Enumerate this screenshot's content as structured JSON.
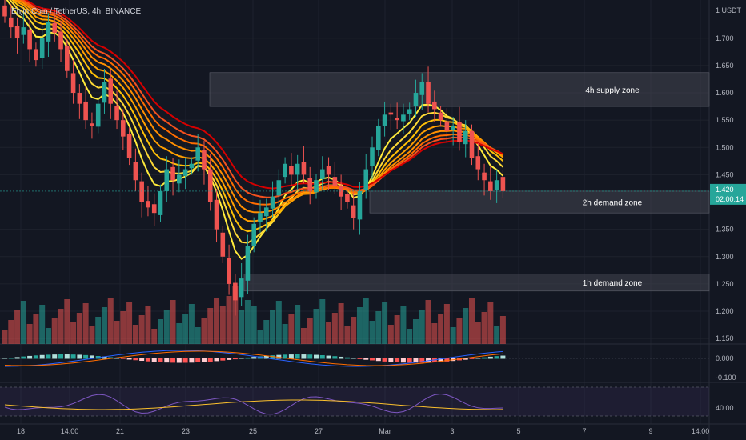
{
  "header": {
    "symbol_title": "Enjin Coin / TetherUS, 4h, BINANCE"
  },
  "price_axis": {
    "unit_label": "1 USDT",
    "ticks": [
      "1.700",
      "1.650",
      "1.600",
      "1.550",
      "1.500",
      "1.450",
      "1.350",
      "1.300",
      "1.250",
      "1.200",
      "1.150"
    ],
    "current_price": "1.420",
    "countdown": "02:00:14"
  },
  "time_axis": {
    "ticks": [
      "18",
      "14:00",
      "21",
      "23",
      "25",
      "27",
      "Mar",
      "3",
      "5",
      "7",
      "9",
      "14:00"
    ]
  },
  "macd_panel": {
    "zero_label": "0.000",
    "neg_label": "-0.100"
  },
  "rsi_panel": {
    "level_label": "40.00"
  },
  "colors": {
    "background": "#131722",
    "up_candle": "#26a69a",
    "down_candle": "#ef5350",
    "zone_fill": "#434651",
    "ribbon_outer": "#ffeb3b",
    "ribbon_inner": "#d50000",
    "rsi_line": "#7e57c2",
    "macd_line": "#2962ff",
    "signal_line": "#ff6d00"
  },
  "chart_data": {
    "type": "candlestick",
    "timeframe": "4h",
    "y_range": [
      1.14,
      1.77
    ],
    "zones": [
      {
        "label": "4h supply zone",
        "low": 1.575,
        "high": 1.637
      },
      {
        "label": "2h demand zone",
        "low": 1.38,
        "high": 1.42
      },
      {
        "label": "1h demand zone",
        "low": 1.237,
        "high": 1.268
      }
    ],
    "close_path": [
      1.74,
      1.72,
      1.7,
      1.72,
      1.68,
      1.66,
      1.7,
      1.73,
      1.71,
      1.68,
      1.64,
      1.6,
      1.58,
      1.55,
      1.54,
      1.58,
      1.62,
      1.58,
      1.55,
      1.52,
      1.48,
      1.44,
      1.4,
      1.39,
      1.38,
      1.42,
      1.46,
      1.44,
      1.45,
      1.46,
      1.47,
      1.5,
      1.46,
      1.4,
      1.35,
      1.3,
      1.25,
      1.22,
      1.26,
      1.32,
      1.36,
      1.38,
      1.39,
      1.41,
      1.44,
      1.47,
      1.45,
      1.47,
      1.45,
      1.42,
      1.44,
      1.46,
      1.45,
      1.43,
      1.41,
      1.4,
      1.37,
      1.42,
      1.46,
      1.5,
      1.54,
      1.56,
      1.56,
      1.55,
      1.56,
      1.57,
      1.6,
      1.62,
      1.58,
      1.57,
      1.55,
      1.53,
      1.54,
      1.51,
      1.53,
      1.48,
      1.46,
      1.44,
      1.42,
      1.44,
      1.42
    ]
  }
}
